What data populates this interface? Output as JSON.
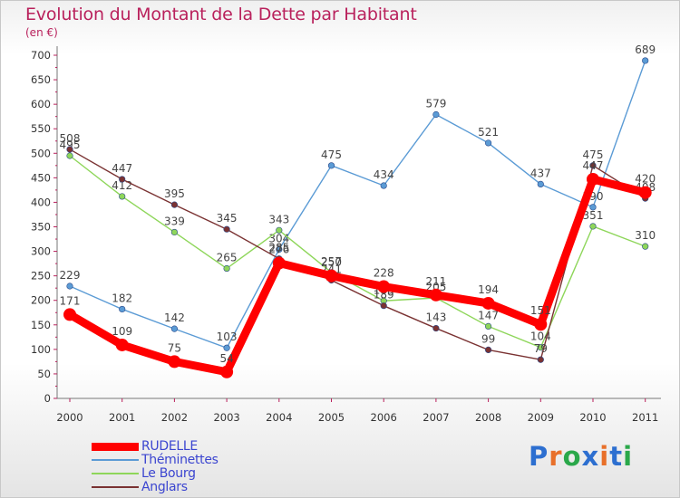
{
  "chart_data": {
    "type": "line",
    "title": "Evolution du Montant de la Dette par Habitant",
    "subtitle": "(en €)",
    "x": [
      "2000",
      "2001",
      "2002",
      "2003",
      "2004",
      "2005",
      "2006",
      "2007",
      "2008",
      "2009",
      "2010",
      "2011"
    ],
    "ylim": [
      0,
      700
    ],
    "yticks": [
      0,
      50,
      100,
      150,
      200,
      250,
      300,
      350,
      400,
      450,
      500,
      550,
      600,
      650,
      700
    ],
    "grid": false,
    "legend_position": "bottom-left",
    "series": [
      {
        "name": "Théminettes",
        "color": "#5b9bd5",
        "values": [
          229,
          182,
          142,
          103,
          304,
          475,
          434,
          579,
          521,
          437,
          390,
          689
        ]
      },
      {
        "name": "Le Bourg",
        "color": "#8ed65a",
        "values": [
          495,
          412,
          339,
          265,
          343,
          257,
          199,
          205,
          147,
          104,
          351,
          310
        ]
      },
      {
        "name": "Anglars",
        "color": "#7a3232",
        "values": [
          508,
          447,
          395,
          345,
          285,
          241,
          189,
          143,
          99,
          79,
          475,
          408
        ]
      },
      {
        "name": "RUDELLE",
        "color": "#ff0000",
        "values": [
          171,
          109,
          75,
          54,
          276,
          250,
          228,
          211,
          194,
          151,
          447,
          420
        ]
      }
    ]
  },
  "legend": [
    {
      "name": "RUDELLE",
      "color": "#ff0000"
    },
    {
      "name": "Théminettes",
      "color": "#5b9bd5"
    },
    {
      "name": "Le Bourg",
      "color": "#8ed65a"
    },
    {
      "name": "Anglars",
      "color": "#7a3232"
    }
  ],
  "logo": {
    "text": "Proxiti",
    "colors": [
      "#2d6fd0",
      "#e8702a",
      "#2aa84a",
      "#2d6fd0",
      "#e8702a",
      "#2d6fd0",
      "#2aa84a"
    ]
  }
}
